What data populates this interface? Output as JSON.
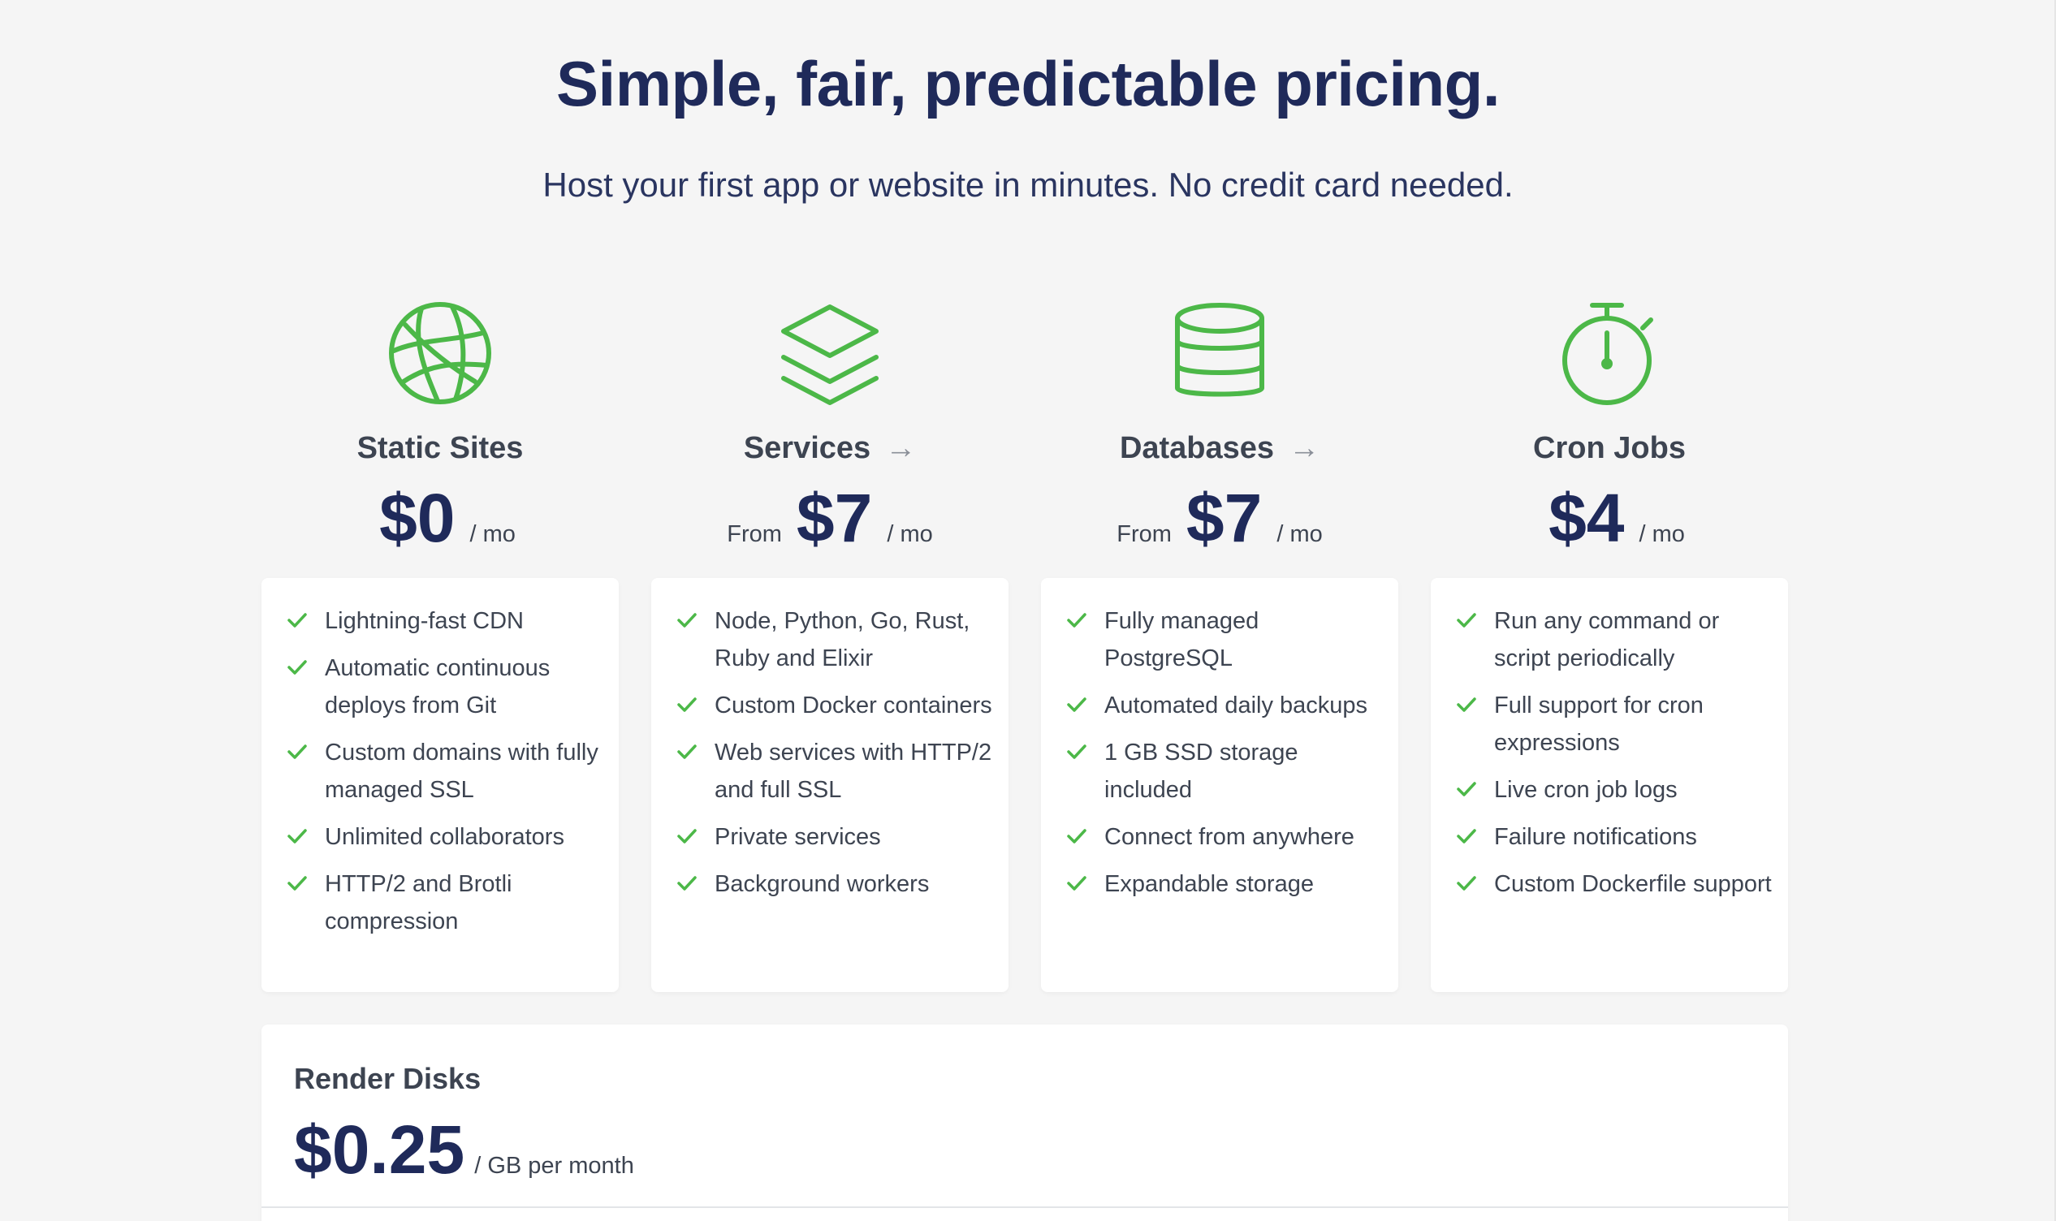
{
  "header": {
    "title": "Simple, fair, predictable pricing.",
    "subtitle": "Host your first app or website in minutes. No credit card needed."
  },
  "colors": {
    "accent": "#4cb848",
    "heading": "#1f2a5a",
    "text": "#3d4451",
    "background": "#f5f5f5",
    "card": "#ffffff"
  },
  "tiers": [
    {
      "name": "Static Sites",
      "icon": "globe-icon",
      "has_link": false,
      "from": "",
      "price": "$0",
      "per": "/ mo",
      "features": [
        "Lightning-fast CDN",
        "Automatic continuous deploys from Git",
        "Custom domains with fully managed SSL",
        "Unlimited collaborators",
        "HTTP/2 and Brotli compression"
      ]
    },
    {
      "name": "Services",
      "icon": "layers-icon",
      "has_link": true,
      "arrow": "→",
      "from": "From",
      "price": "$7",
      "per": "/ mo",
      "features": [
        "Node, Python, Go, Rust, Ruby and Elixir",
        "Custom Docker containers",
        "Web services with HTTP/2 and full SSL",
        "Private services",
        "Background workers"
      ]
    },
    {
      "name": "Databases",
      "icon": "database-icon",
      "has_link": true,
      "arrow": "→",
      "from": "From",
      "price": "$7",
      "per": "/ mo",
      "features": [
        "Fully managed PostgreSQL",
        "Automated daily backups",
        "1 GB SSD storage included",
        "Connect from anywhere",
        "Expandable storage"
      ]
    },
    {
      "name": "Cron Jobs",
      "icon": "stopwatch-icon",
      "has_link": false,
      "from": "",
      "price": "$4",
      "per": "/ mo",
      "features": [
        "Run any command or script periodically",
        "Full support for cron expressions",
        "Live cron job logs",
        "Failure notifications",
        "Custom Dockerfile support"
      ]
    }
  ],
  "disks": {
    "title": "Render Disks",
    "price": "$0.25",
    "per": "/ GB per month"
  }
}
